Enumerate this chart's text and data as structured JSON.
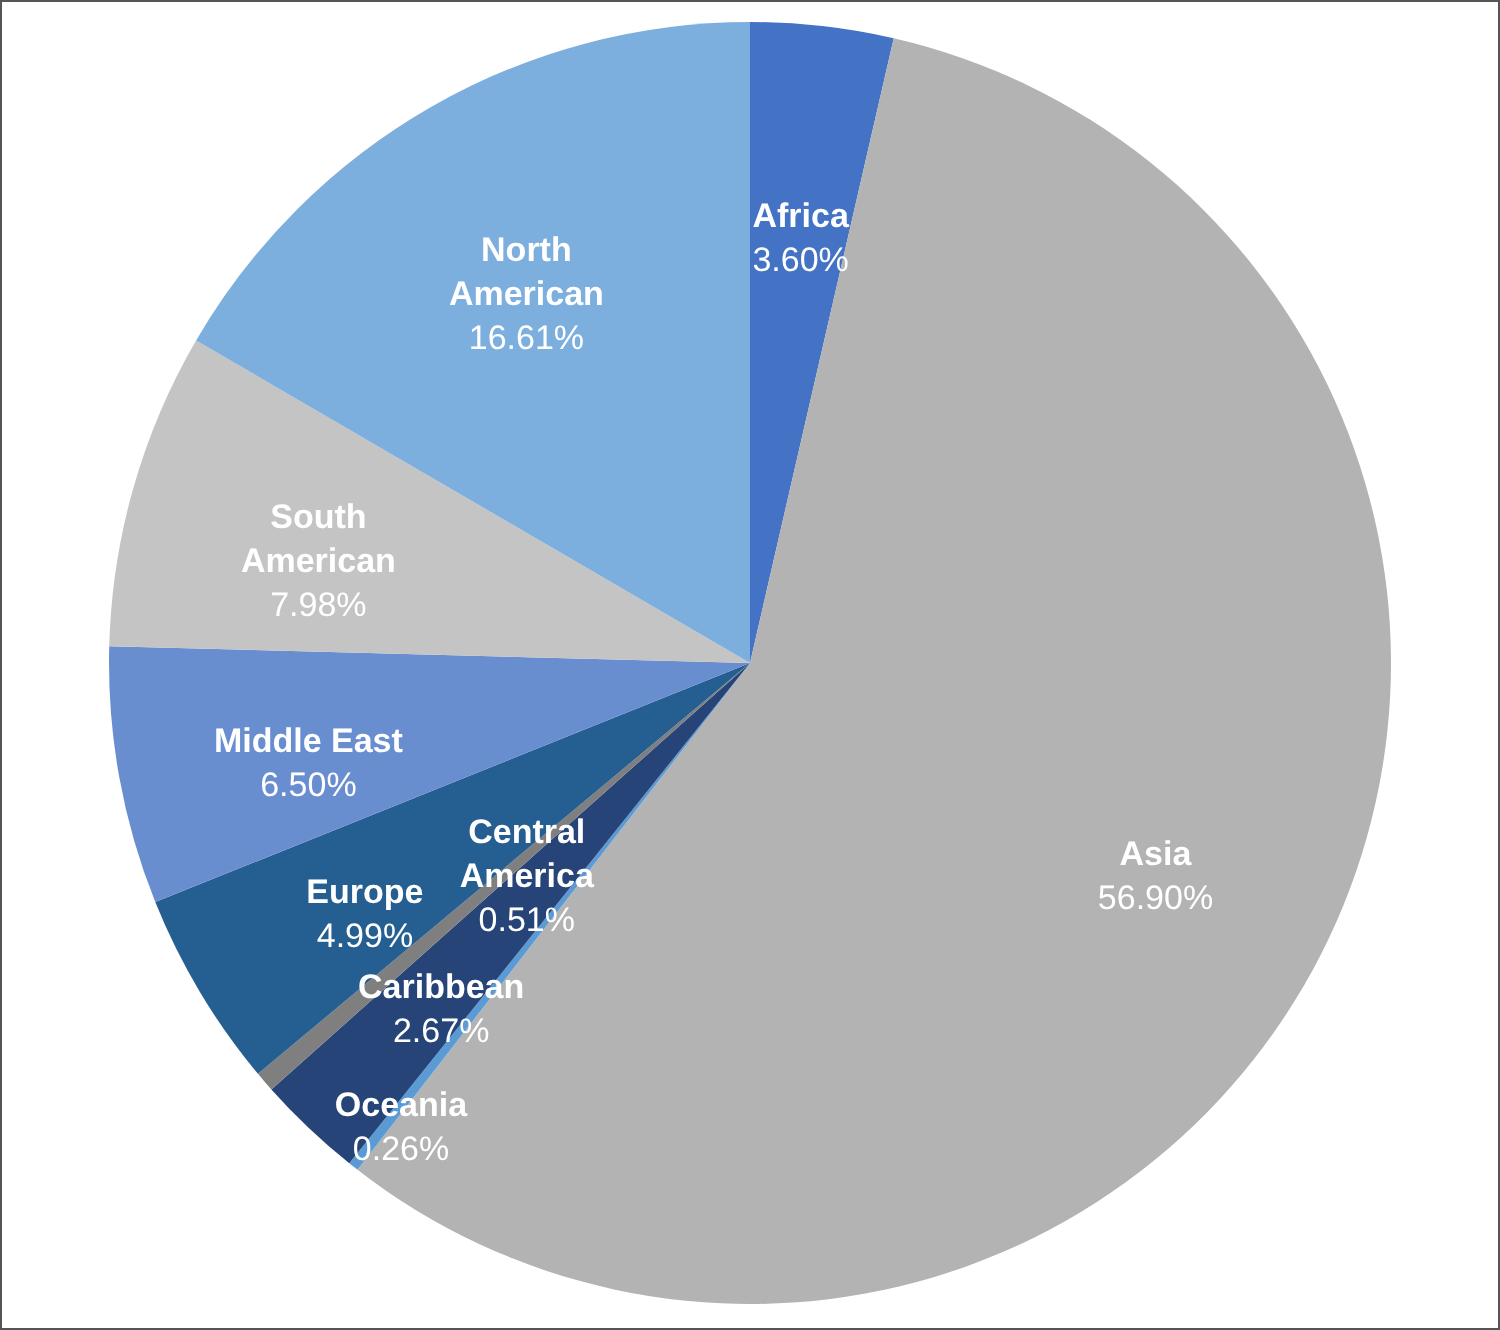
{
  "chart_data": {
    "type": "pie",
    "categories": [
      "Africa",
      "Asia",
      "Oceania",
      "Caribbean",
      "Central America",
      "Europe",
      "Middle East",
      "South American",
      "North American"
    ],
    "values": [
      3.6,
      56.9,
      0.26,
      2.67,
      0.51,
      4.99,
      6.5,
      7.98,
      16.61
    ],
    "value_labels": [
      "3.60%",
      "56.90%",
      "0.26%",
      "2.67%",
      "0.51%",
      "4.99%",
      "6.50%",
      "7.98%",
      "16.61%"
    ],
    "colors": [
      "#4472c4",
      "#b3b3b3",
      "#5b9bd5",
      "#264478",
      "#7f7f7f",
      "#255e91",
      "#698ed0",
      "#c4c4c4",
      "#7cafdd"
    ],
    "legend": false
  }
}
